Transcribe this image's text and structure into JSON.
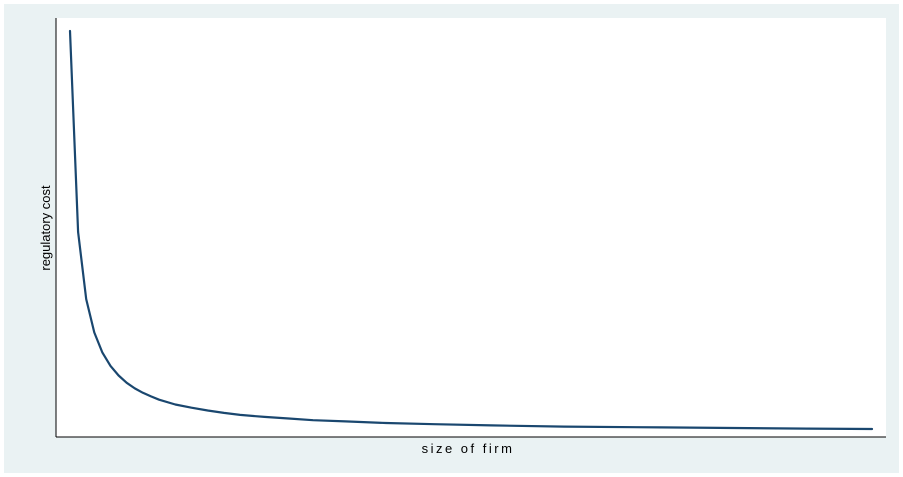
{
  "chart_data": {
    "type": "line",
    "xlabel": "size of firm",
    "ylabel": "regulatory cost",
    "grid": false,
    "legend": "none",
    "series": [
      {
        "color": "#1a476f",
        "points": [
          [
            1,
            1.0
          ],
          [
            2,
            0.5
          ],
          [
            3,
            0.333
          ],
          [
            4,
            0.25
          ],
          [
            5,
            0.2
          ],
          [
            6,
            0.167
          ],
          [
            7,
            0.143
          ],
          [
            8,
            0.125
          ],
          [
            9,
            0.111
          ],
          [
            10,
            0.1
          ],
          [
            11,
            0.091
          ],
          [
            12,
            0.083
          ],
          [
            14,
            0.071
          ],
          [
            16,
            0.063
          ],
          [
            18,
            0.056
          ],
          [
            20,
            0.05
          ],
          [
            22,
            0.045
          ],
          [
            25,
            0.04
          ],
          [
            28,
            0.036
          ],
          [
            31,
            0.032
          ],
          [
            35,
            0.029
          ],
          [
            40,
            0.025
          ],
          [
            46,
            0.022
          ],
          [
            53,
            0.019
          ],
          [
            62,
            0.016
          ],
          [
            74,
            0.014
          ],
          [
            92,
            0.011
          ],
          [
            100,
            0.01
          ]
        ]
      }
    ]
  }
}
